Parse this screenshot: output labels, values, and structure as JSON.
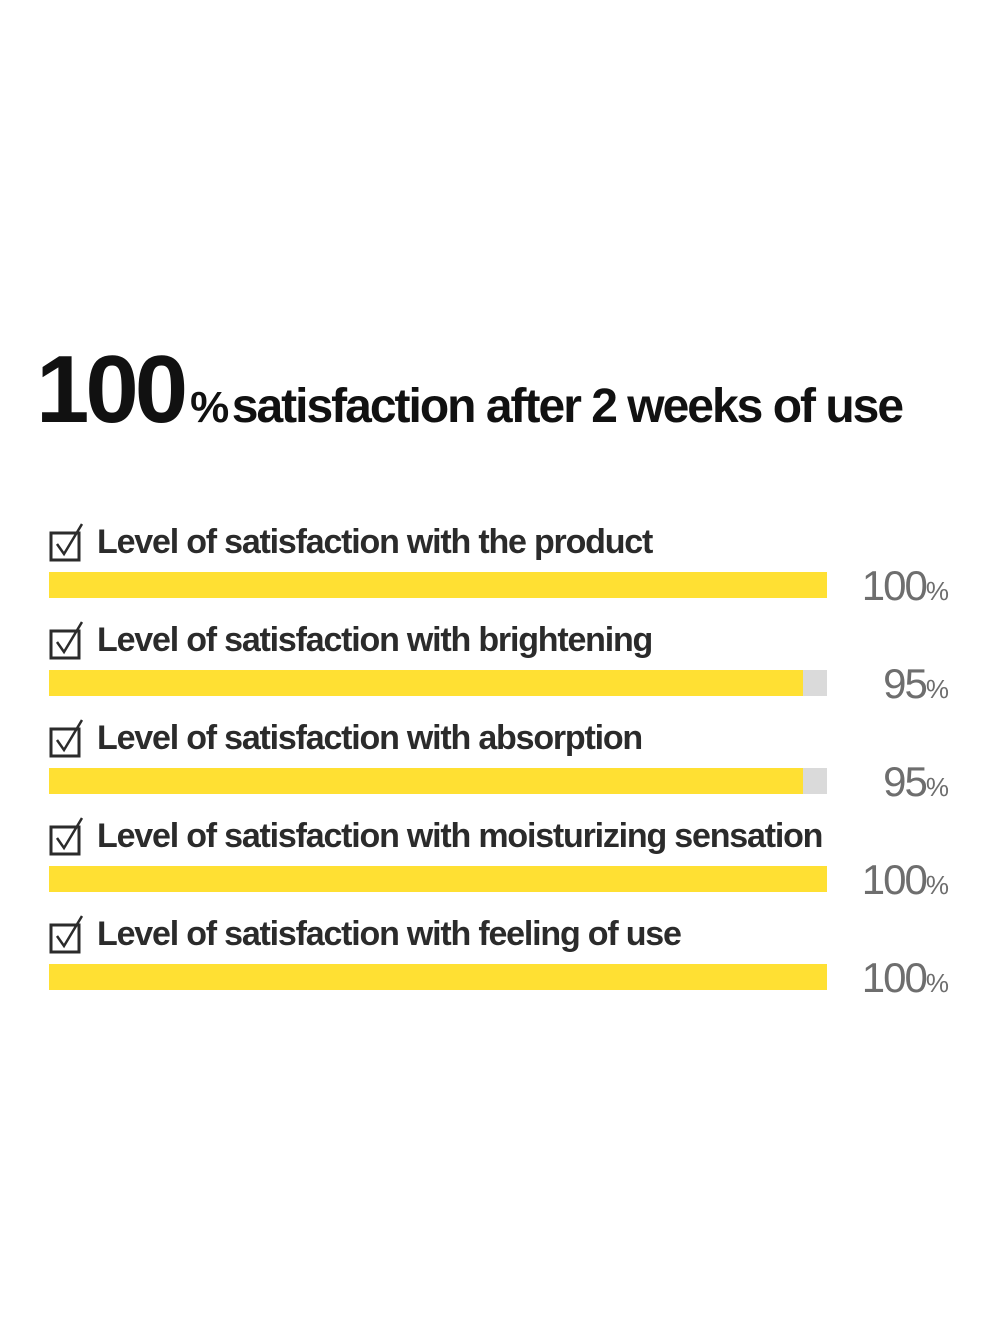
{
  "headline": {
    "number": "100",
    "percent_sign": "%",
    "text": "satisfaction after 2 weeks of use"
  },
  "colors": {
    "fill": "#ffe033",
    "track": "#dadada",
    "text": "#2b2b2b",
    "value": "#6e6e6e"
  },
  "chart_data": {
    "type": "bar",
    "orientation": "horizontal",
    "title": "100% satisfaction after 2 weeks of use",
    "categories": [
      "Level of satisfaction with the product",
      "Level of satisfaction with brightening",
      "Level of satisfaction with absorption",
      "Level of satisfaction with moisturizing sensation",
      "Level of satisfaction with feeling of use"
    ],
    "values": [
      100,
      95,
      95,
      100,
      100
    ],
    "value_labels": [
      "100",
      "95",
      "95",
      "100",
      "100"
    ],
    "unit": "%",
    "xlim": [
      0,
      100
    ],
    "grid": false
  }
}
